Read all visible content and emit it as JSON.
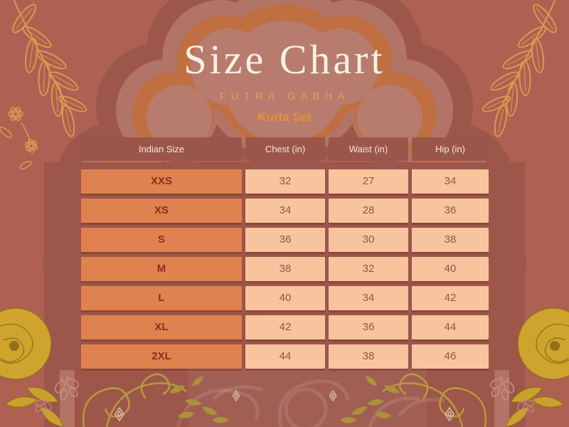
{
  "header": {
    "title": "Size Chart",
    "brand": "FUTRA GABHA",
    "subtitle": "Kurta Set"
  },
  "table": {
    "columns": [
      "Indian Size",
      "Chest (in)",
      "Waist (in)",
      "Hip (in)"
    ],
    "rows": [
      {
        "size": "XXS",
        "chest": "32",
        "waist": "27",
        "hip": "34"
      },
      {
        "size": "XS",
        "chest": "34",
        "waist": "28",
        "hip": "36"
      },
      {
        "size": "S",
        "chest": "36",
        "waist": "30",
        "hip": "38"
      },
      {
        "size": "M",
        "chest": "38",
        "waist": "32",
        "hip": "40"
      },
      {
        "size": "L",
        "chest": "40",
        "waist": "34",
        "hip": "42"
      },
      {
        "size": "XL",
        "chest": "42",
        "waist": "36",
        "hip": "44"
      },
      {
        "size": "2XL",
        "chest": "44",
        "waist": "38",
        "hip": "46"
      }
    ]
  },
  "chart_data": {
    "type": "table",
    "title": "Size Chart",
    "brand": "FUTRA GABHA",
    "subtitle": "Kurta Set",
    "units": "inches",
    "columns": [
      "Indian Size",
      "Chest (in)",
      "Waist (in)",
      "Hip (in)"
    ],
    "rows": [
      [
        "XXS",
        32,
        27,
        34
      ],
      [
        "XS",
        34,
        28,
        36
      ],
      [
        "S",
        36,
        30,
        38
      ],
      [
        "M",
        38,
        32,
        40
      ],
      [
        "L",
        40,
        34,
        42
      ],
      [
        "XL",
        42,
        36,
        44
      ],
      [
        "2XL",
        44,
        38,
        46
      ]
    ]
  },
  "colors": {
    "background": "#ae6053",
    "arch_dark": "#9c564a",
    "arch_light_ring": "#b27467",
    "arch_orange_ring": "#c06f42",
    "arch_inner": "#b77c6e",
    "header_cell_bg": "#9b564b",
    "header_cell_text": "#f5e7db",
    "size_cell_bg": "#e0824f",
    "size_cell_text": "#8a2e1d",
    "value_cell_bg": "#f8c49e",
    "value_cell_text": "#8e5742",
    "title_text": "#f8f0e2",
    "brand_text": "#e89a57",
    "subtitle_text": "#e88f3a",
    "gold_outline": "#d89a4e",
    "gold_fill": "#cfa42e"
  },
  "decorations": [
    "mughal-arch-background",
    "gold-leaf-branch",
    "gold-outline-flowers",
    "gold-foil-rose",
    "gold-vine-scrolls",
    "butterfly-outline",
    "diamond-ornament",
    "damask-pattern"
  ]
}
